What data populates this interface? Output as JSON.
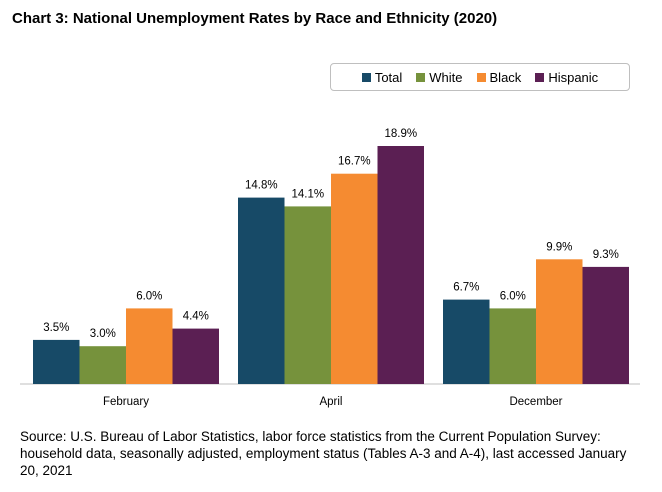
{
  "title": "Chart 3: National Unemployment Rates by Race and Ethnicity (2020)",
  "source": "Source: U.S. Bureau of Labor Statistics, labor force statistics from the Current Population Survey: household data, seasonally adjusted, employment status (Tables A-3 and A-4), last accessed January 20, 2021",
  "chart_data": {
    "type": "bar",
    "categories": [
      "February",
      "April",
      "December"
    ],
    "series": [
      {
        "name": "Total",
        "color": "#174a67",
        "values": [
          3.5,
          14.8,
          6.7
        ],
        "labels": [
          "3.5%",
          "14.8%",
          "6.7%"
        ]
      },
      {
        "name": "White",
        "color": "#76923c",
        "values": [
          3.0,
          14.1,
          6.0
        ],
        "labels": [
          "3.0%",
          "14.1%",
          "6.0%"
        ]
      },
      {
        "name": "Black",
        "color": "#f58b31",
        "values": [
          6.0,
          16.7,
          9.9
        ],
        "labels": [
          "6.0%",
          "16.7%",
          "9.9%"
        ]
      },
      {
        "name": "Hispanic",
        "color": "#5b1f53",
        "values": [
          4.4,
          18.9,
          9.3
        ],
        "labels": [
          "4.4%",
          "18.9%",
          "9.3%"
        ]
      }
    ],
    "legend_position": "top-right",
    "grid": false
  }
}
